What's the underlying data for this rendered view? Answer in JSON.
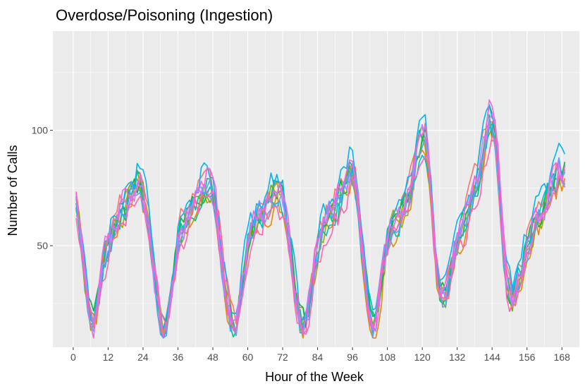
{
  "chart_data": {
    "type": "line",
    "title": "Overdose/Poisoning (Ingestion)",
    "xlabel": "Hour of the Week",
    "ylabel": "Number of Calls",
    "xlim": [
      -7,
      174
    ],
    "ylim": [
      6,
      143
    ],
    "x_ticks": [
      0,
      12,
      24,
      36,
      48,
      60,
      72,
      84,
      96,
      108,
      120,
      132,
      144,
      156,
      168
    ],
    "x_tick_labels": [
      "0",
      "12",
      "24",
      "36",
      "48",
      "60",
      "72",
      "84",
      "96",
      "108",
      "120",
      "132",
      "144",
      "156",
      "168"
    ],
    "y_ticks": [
      50,
      100
    ],
    "y_tick_labels": [
      "50",
      "100"
    ],
    "grid": true,
    "legend": "none",
    "series_colors": [
      "#F8766D",
      "#DE8C00",
      "#B79F00",
      "#7CAE00",
      "#00BA38",
      "#00C08B",
      "#00BFC4",
      "#00B4F0",
      "#619CFF",
      "#C77CFF",
      "#F564E3",
      "#FF64B0"
    ],
    "daily_profile": {
      "hours": [
        0,
        1,
        2,
        3,
        4,
        5,
        6,
        7,
        8,
        9,
        10,
        11,
        12,
        13,
        14,
        15,
        16,
        17,
        18,
        19,
        20,
        21,
        22,
        23
      ],
      "sun_mon": [
        68,
        60,
        48,
        38,
        28,
        20,
        15,
        20,
        30,
        38,
        44,
        50,
        55,
        58,
        60,
        63,
        65,
        67,
        70,
        72,
        74,
        76,
        75,
        71
      ],
      "mon_tue": [
        65,
        58,
        45,
        35,
        27,
        20,
        15,
        17,
        25,
        33,
        42,
        50,
        55,
        58,
        60,
        63,
        65,
        67,
        70,
        73,
        75,
        76,
        75,
        72
      ],
      "tue_wed": [
        65,
        57,
        45,
        35,
        27,
        20,
        16,
        17,
        25,
        33,
        42,
        50,
        55,
        58,
        60,
        62,
        64,
        66,
        68,
        70,
        72,
        72,
        72,
        70
      ],
      "wed_thu": [
        62,
        55,
        45,
        35,
        25,
        18,
        16,
        17,
        24,
        32,
        40,
        48,
        53,
        57,
        60,
        62,
        64,
        66,
        68,
        71,
        73,
        76,
        80,
        80
      ],
      "thu_fri": [
        75,
        66,
        52,
        40,
        30,
        22,
        17,
        18,
        26,
        35,
        43,
        50,
        55,
        58,
        60,
        62,
        64,
        66,
        70,
        74,
        80,
        86,
        92,
        95
      ],
      "fri_sat": [
        95,
        88,
        74,
        55,
        40,
        32,
        28,
        30,
        35,
        40,
        45,
        50,
        54,
        58,
        62,
        66,
        70,
        74,
        78,
        84,
        90,
        96,
        103,
        100
      ],
      "sat_sun": [
        98,
        85,
        66,
        48,
        35,
        30,
        28,
        30,
        35,
        40,
        45,
        50,
        54,
        57,
        60,
        62,
        64,
        66,
        70,
        73,
        76,
        78,
        82,
        80
      ]
    }
  }
}
